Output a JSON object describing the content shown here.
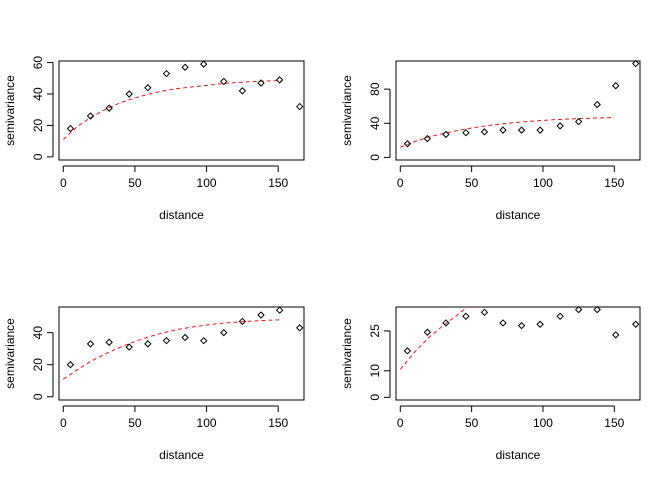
{
  "chart_data": [
    {
      "type": "scatter",
      "xlabel": "distance",
      "ylabel": "semivariance",
      "xlim": [
        -3,
        168
      ],
      "ylim": [
        -2,
        61
      ],
      "xticks": [
        0,
        50,
        100,
        150
      ],
      "yticks": [
        0,
        20,
        40,
        60
      ],
      "points": {
        "x": [
          5,
          19,
          32,
          46,
          59,
          72,
          85,
          98,
          112,
          125,
          138,
          151,
          165
        ],
        "y": [
          18,
          26,
          31,
          40,
          44,
          53,
          57,
          59,
          48,
          42,
          47,
          49,
          32
        ]
      },
      "model": {
        "x": [
          0,
          10,
          20,
          30,
          40,
          50,
          60,
          70,
          80,
          90,
          100,
          110,
          120,
          130,
          140,
          152
        ],
        "y": [
          11,
          19.5,
          25.5,
          30.5,
          34.5,
          37.5,
          40,
          42,
          43.5,
          44.5,
          45.5,
          46.5,
          47.2,
          47.8,
          48.2,
          48.6
        ]
      }
    },
    {
      "type": "scatter",
      "xlabel": "distance",
      "ylabel": "semivariance",
      "xlim": [
        -3,
        168
      ],
      "ylim": [
        -3,
        113
      ],
      "xticks": [
        0,
        50,
        100,
        150
      ],
      "yticks": [
        0,
        40,
        80
      ],
      "points": {
        "x": [
          5,
          19,
          32,
          46,
          59,
          72,
          85,
          98,
          112,
          125,
          138,
          151,
          165
        ],
        "y": [
          16,
          22,
          27,
          29,
          30,
          32,
          32,
          32,
          37,
          42,
          62,
          84,
          110
        ]
      },
      "model": {
        "x": [
          0,
          10,
          20,
          30,
          40,
          50,
          60,
          70,
          80,
          90,
          100,
          110,
          120,
          130,
          140,
          150
        ],
        "y": [
          12,
          18.5,
          24,
          28,
          31.5,
          34.5,
          37,
          39,
          40.8,
          42.2,
          43.4,
          44.4,
          45.2,
          45.8,
          46.3,
          46.7
        ]
      }
    },
    {
      "type": "scatter",
      "xlabel": "distance",
      "ylabel": "semivariance",
      "xlim": [
        -3,
        168
      ],
      "ylim": [
        -2,
        56
      ],
      "xticks": [
        0,
        50,
        100,
        150
      ],
      "yticks": [
        0,
        20,
        40
      ],
      "points": {
        "x": [
          5,
          19,
          32,
          46,
          59,
          72,
          85,
          98,
          112,
          125,
          138,
          151,
          165
        ],
        "y": [
          20,
          33,
          34,
          31,
          33,
          35,
          37,
          35,
          40,
          47,
          51,
          54,
          43
        ]
      },
      "model": {
        "x": [
          0,
          10,
          20,
          30,
          40,
          50,
          60,
          70,
          80,
          90,
          100,
          110,
          120,
          130,
          140,
          152
        ],
        "y": [
          11,
          17,
          22.5,
          27,
          31,
          34.5,
          37.5,
          40,
          42,
          43.5,
          44.8,
          45.8,
          46.5,
          47.1,
          47.6,
          48
        ]
      }
    },
    {
      "type": "scatter",
      "xlabel": "distance",
      "ylabel": "semivariance",
      "xlim": [
        -3,
        168
      ],
      "ylim": [
        -1,
        34
      ],
      "xticks": [
        0,
        50,
        100,
        150
      ],
      "yticks": [
        0,
        10,
        25
      ],
      "points": {
        "x": [
          5,
          19,
          32,
          46,
          59,
          72,
          85,
          98,
          112,
          125,
          138,
          151,
          165
        ],
        "y": [
          17.5,
          24.5,
          28,
          30.5,
          32,
          28,
          27,
          27.5,
          30.5,
          33,
          33,
          23.5,
          27.5
        ]
      },
      "model": {
        "x": [
          0,
          10,
          20,
          30,
          40,
          47
        ],
        "y": [
          10.5,
          17,
          22.5,
          27,
          31,
          34
        ]
      }
    }
  ]
}
